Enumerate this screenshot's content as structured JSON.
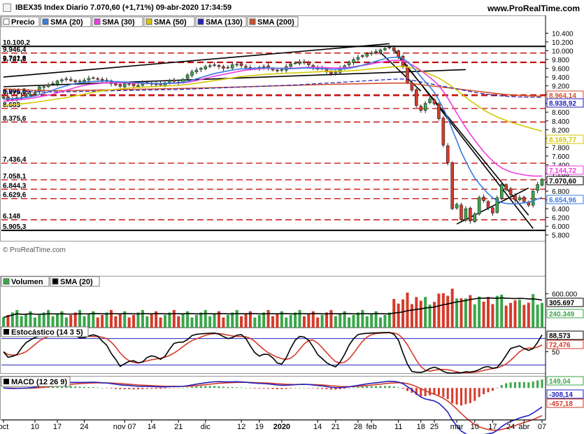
{
  "header": {
    "title": "IBEX35 Index Diario 7.070,60 (+1,71%) 09-abr-2020 17:34:59",
    "url": "www.ProRealTime.com"
  },
  "watermark": "© ProRealTime.com",
  "colors": {
    "sma20": "#3a7be0",
    "sma30": "#ee3de0",
    "sma50": "#d4c800",
    "sma130": "#2222bb",
    "sma200": "#d2512c",
    "candle_up": "#3aa64a",
    "candle_down": "#d63b2a",
    "resistance": "#c40000"
  },
  "chart_data": [
    {
      "type": "candlestick",
      "name": "price",
      "legend": [
        {
          "name": "Precio",
          "color": "#ffffff"
        },
        {
          "name": "SMA (20)",
          "color": "#3a7be0"
        },
        {
          "name": "SMA (30)",
          "color": "#ee3de0"
        },
        {
          "name": "SMA (50)",
          "color": "#d4c800"
        },
        {
          "name": "SMA (130)",
          "color": "#2222bb"
        },
        {
          "name": "SMA (200)",
          "color": "#d2512c"
        }
      ],
      "ylim": [
        5700,
        10550
      ],
      "y_ticks": [
        "10.400",
        "10.200",
        "10.000",
        "9.800",
        "9.600",
        "9.400",
        "9.200",
        "9.000",
        "8.800",
        "8.600",
        "8.400",
        "8.200",
        "8.000",
        "7.800",
        "7.600",
        "7.400",
        "7.200",
        "7.000",
        "6.800",
        "6.600",
        "6.400",
        "6.200",
        "6.000",
        "5.800"
      ],
      "x_labels": [
        "oct",
        "10",
        "17",
        "24",
        "nov 07",
        "14",
        "21",
        "dic",
        "12",
        "19",
        "2020",
        "14",
        "21",
        "28",
        "feb",
        "11",
        "18",
        "25",
        "mar",
        "10",
        "17",
        "24",
        "abr",
        "07"
      ],
      "level_lines": [
        {
          "label": "10.100,2",
          "value": 10100.2,
          "style": "solid"
        },
        {
          "label": "9.946,4",
          "value": 9946.4,
          "style": "dashed"
        },
        {
          "label": "9.741,8",
          "value": 9741.8,
          "style": "dashed"
        },
        {
          "label": "9.727,8",
          "value": 9727.8,
          "style": "dashed"
        },
        {
          "label": "8.996,5",
          "value": 8996.5,
          "style": "dashed"
        },
        {
          "label": "8.975,09",
          "value": 8975.09,
          "style": "dashed"
        },
        {
          "label": "8.683",
          "value": 8683,
          "style": "dashed"
        },
        {
          "label": "8.375,6",
          "value": 8375.6,
          "style": "dashed"
        },
        {
          "label": "7.436,4",
          "value": 7436.4,
          "style": "dashed"
        },
        {
          "label": "7.058,1",
          "value": 7058.1,
          "style": "dashed"
        },
        {
          "label": "6.844,3",
          "value": 6844.3,
          "style": "dashed"
        },
        {
          "label": "6.629,6",
          "value": 6629.6,
          "style": "dashed"
        },
        {
          "label": "6.148",
          "value": 6148,
          "style": "dashed"
        },
        {
          "label": "5.905,3",
          "value": 5905.3,
          "style": "solid"
        }
      ],
      "value_tags": [
        {
          "label": "8.964,14",
          "value": 8964.14,
          "color": "#d2512c"
        },
        {
          "label": "8.938,92",
          "value": 8938.92,
          "color": "#2222bb"
        },
        {
          "label": "8.169,77",
          "value": 8169.77,
          "color": "#d4c800"
        },
        {
          "label": "7.144,72",
          "value": 7144.72,
          "color": "#ee3de0"
        },
        {
          "label": "7.070,60",
          "value": 7070.6,
          "color": "#000000"
        },
        {
          "label": "6.654,96",
          "value": 6654.96,
          "color": "#3a7be0"
        }
      ],
      "close": [
        8950,
        8870,
        8900,
        8930,
        8940,
        8990,
        9010,
        9050,
        9180,
        9180,
        9220,
        9250,
        9310,
        9340,
        9360,
        9320,
        9290,
        9310,
        9330,
        9370,
        9380,
        9350,
        9300,
        9330,
        9250,
        9220,
        9190,
        9250,
        9240,
        9200,
        9210,
        9260,
        9280,
        9240,
        9230,
        9220,
        9270,
        9320,
        9300,
        9280,
        9350,
        9450,
        9520,
        9560,
        9600,
        9640,
        9660,
        9680,
        9640,
        9600,
        9620,
        9680,
        9690,
        9660,
        9620,
        9580,
        9600,
        9620,
        9640,
        9610,
        9560,
        9540,
        9570,
        9640,
        9700,
        9720,
        9750,
        9730,
        9680,
        9620,
        9580,
        9600,
        9520,
        9480,
        9520,
        9600,
        9660,
        9740,
        9800,
        9850,
        9890,
        9930,
        9950,
        9980,
        10020,
        10050,
        10080,
        10000,
        9860,
        9650,
        9270,
        9100,
        8750,
        8640,
        8800,
        8900,
        8790,
        8450,
        7850,
        7450,
        6400,
        6500,
        6150,
        6400,
        6120,
        6280,
        6650,
        6580,
        6420,
        6300,
        6650,
        6950,
        6840,
        6720,
        6600,
        6650,
        6560,
        6480,
        6800,
        6950,
        7070
      ],
      "sma20": [
        8900,
        8900,
        8905,
        8910,
        8920,
        8935,
        8950,
        8970,
        9000,
        9030,
        9060,
        9100,
        9140,
        9170,
        9200,
        9230,
        9250,
        9270,
        9280,
        9290,
        9300,
        9305,
        9310,
        9310,
        9300,
        9295,
        9290,
        9285,
        9280,
        9275,
        9270,
        9265,
        9260,
        9255,
        9250,
        9250,
        9255,
        9260,
        9265,
        9270,
        9280,
        9300,
        9330,
        9360,
        9390,
        9420,
        9450,
        9480,
        9500,
        9520,
        9540,
        9560,
        9575,
        9585,
        9590,
        9595,
        9600,
        9605,
        9610,
        9610,
        9605,
        9600,
        9595,
        9590,
        9590,
        9595,
        9600,
        9605,
        9605,
        9600,
        9600,
        9595,
        9590,
        9580,
        9575,
        9580,
        9590,
        9600,
        9620,
        9640,
        9670,
        9700,
        9730,
        9760,
        9790,
        9820,
        9840,
        9850,
        9850,
        9820,
        9750,
        9650,
        9530,
        9410,
        9290,
        9180,
        9050,
        8880,
        8680,
        8470,
        8200,
        7950,
        7690,
        7480,
        7280,
        7100,
        6970,
        6850,
        6740,
        6650,
        6580,
        6540,
        6520,
        6510,
        6510,
        6520,
        6530,
        6550,
        6580,
        6620,
        6655
      ],
      "sma30": [
        8850,
        8860,
        8870,
        8880,
        8890,
        8900,
        8915,
        8930,
        8950,
        8970,
        8990,
        9010,
        9040,
        9070,
        9100,
        9130,
        9160,
        9190,
        9210,
        9230,
        9240,
        9250,
        9260,
        9265,
        9270,
        9270,
        9268,
        9266,
        9264,
        9262,
        9260,
        9258,
        9256,
        9254,
        9252,
        9252,
        9254,
        9256,
        9258,
        9262,
        9270,
        9280,
        9300,
        9320,
        9345,
        9370,
        9395,
        9420,
        9440,
        9460,
        9480,
        9500,
        9520,
        9540,
        9560,
        9570,
        9580,
        9590,
        9595,
        9600,
        9600,
        9600,
        9600,
        9600,
        9602,
        9605,
        9610,
        9615,
        9620,
        9620,
        9620,
        9618,
        9615,
        9610,
        9605,
        9605,
        9610,
        9620,
        9635,
        9650,
        9665,
        9680,
        9700,
        9720,
        9740,
        9755,
        9770,
        9780,
        9780,
        9765,
        9730,
        9680,
        9620,
        9550,
        9470,
        9390,
        9310,
        9200,
        9070,
        8920,
        8750,
        8580,
        8410,
        8250,
        8100,
        7960,
        7830,
        7700,
        7590,
        7490,
        7400,
        7330,
        7280,
        7240,
        7210,
        7190,
        7170,
        7155,
        7145,
        7143,
        7145
      ],
      "sma50": [
        8750,
        8760,
        8770,
        8780,
        8790,
        8800,
        8810,
        8825,
        8840,
        8855,
        8870,
        8885,
        8900,
        8915,
        8930,
        8950,
        8970,
        8990,
        9010,
        9030,
        9050,
        9070,
        9085,
        9100,
        9110,
        9120,
        9130,
        9140,
        9150,
        9160,
        9165,
        9170,
        9175,
        9180,
        9185,
        9190,
        9195,
        9200,
        9205,
        9210,
        9220,
        9230,
        9245,
        9260,
        9275,
        9290,
        9305,
        9320,
        9335,
        9350,
        9365,
        9380,
        9395,
        9410,
        9420,
        9430,
        9440,
        9450,
        9460,
        9465,
        9470,
        9475,
        9480,
        9485,
        9490,
        9495,
        9500,
        9505,
        9510,
        9515,
        9520,
        9525,
        9530,
        9530,
        9530,
        9532,
        9535,
        9540,
        9548,
        9556,
        9565,
        9575,
        9585,
        9595,
        9605,
        9615,
        9625,
        9635,
        9640,
        9640,
        9630,
        9610,
        9580,
        9545,
        9505,
        9465,
        9425,
        9375,
        9315,
        9250,
        9180,
        9100,
        9020,
        8940,
        8860,
        8790,
        8720,
        8650,
        8590,
        8540,
        8490,
        8450,
        8410,
        8370,
        8340,
        8310,
        8280,
        8250,
        8220,
        8195,
        8170
      ],
      "sma130": [
        9080,
        9078,
        9076,
        9074,
        9072,
        9070,
        9068,
        9066,
        9064,
        9062,
        9060,
        9060,
        9060,
        9062,
        9064,
        9066,
        9068,
        9070,
        9072,
        9075,
        9078,
        9080,
        9082,
        9085,
        9088,
        9090,
        9092,
        9094,
        9096,
        9098,
        9100,
        9102,
        9104,
        9106,
        9108,
        9110,
        9112,
        9114,
        9116,
        9118,
        9120,
        9124,
        9128,
        9132,
        9136,
        9140,
        9144,
        9148,
        9152,
        9156,
        9160,
        9164,
        9168,
        9172,
        9176,
        9180,
        9184,
        9188,
        9192,
        9196,
        9200,
        9204,
        9208,
        9212,
        9216,
        9220,
        9226,
        9232,
        9238,
        9244,
        9250,
        9256,
        9262,
        9268,
        9274,
        9280,
        9286,
        9292,
        9298,
        9304,
        9310,
        9316,
        9322,
        9328,
        9334,
        9340,
        9346,
        9352,
        9356,
        9354,
        9345,
        9330,
        9310,
        9290,
        9270,
        9250,
        9230,
        9210,
        9190,
        9170,
        9150,
        9130,
        9110,
        9090,
        9070,
        9050,
        9035,
        9020,
        9005,
        8990,
        8980,
        8970,
        8962,
        8955,
        8950,
        8946,
        8943,
        8941,
        8940,
        8939,
        8939
      ],
      "sma200": [
        9130,
        9125,
        9120,
        9115,
        9110,
        9105,
        9100,
        9098,
        9096,
        9094,
        9092,
        9090,
        9090,
        9090,
        9090,
        9092,
        9094,
        9096,
        9098,
        9100,
        9102,
        9104,
        9106,
        9108,
        9110,
        9112,
        9114,
        9116,
        9118,
        9120,
        9122,
        9124,
        9126,
        9128,
        9130,
        9132,
        9134,
        9136,
        9138,
        9140,
        9142,
        9144,
        9146,
        9148,
        9150,
        9152,
        9155,
        9158,
        9161,
        9164,
        9167,
        9170,
        9173,
        9176,
        9179,
        9182,
        9185,
        9188,
        9191,
        9194,
        9197,
        9200,
        9203,
        9206,
        9209,
        9212,
        9215,
        9218,
        9221,
        9224,
        9227,
        9230,
        9232,
        9234,
        9236,
        9238,
        9240,
        9242,
        9244,
        9246,
        9248,
        9250,
        9252,
        9254,
        9256,
        9258,
        9260,
        9262,
        9263,
        9262,
        9258,
        9250,
        9240,
        9228,
        9216,
        9204,
        9192,
        9180,
        9168,
        9156,
        9144,
        9132,
        9120,
        9108,
        9096,
        9084,
        9072,
        9060,
        9048,
        9036,
        9024,
        9012,
        9002,
        8994,
        8988,
        8982,
        8977,
        8972,
        8969,
        8966,
        8964
      ]
    },
    {
      "type": "bar",
      "name": "volume",
      "legend": [
        {
          "name": "Volumen",
          "color": "#3aa64a"
        },
        {
          "name": "SMA (20)",
          "color": "#000000"
        }
      ],
      "y_ticks": [
        "600.000"
      ],
      "ylim": [
        0,
        720000
      ],
      "value_tags": [
        {
          "label": "305.697",
          "value": 305697,
          "color": "#000000"
        },
        {
          "label": "240.349",
          "value": 240349,
          "color": "#3aa64a"
        }
      ]
    },
    {
      "type": "line",
      "name": "stochastic",
      "legend": [
        {
          "name": "Estocástico (14 3 5)",
          "color": "#000000"
        }
      ],
      "ylim": [
        0,
        100
      ],
      "y_ticks": [
        "50"
      ],
      "value_tags": [
        {
          "label": "88,573",
          "value": 88.573,
          "color": "#000000"
        },
        {
          "label": "72,476",
          "value": 72.476,
          "color": "#d63b2a"
        }
      ]
    },
    {
      "type": "line",
      "name": "macd",
      "legend": [
        {
          "name": "MACD (12 26 9)",
          "color": "#000000"
        }
      ],
      "ylim": [
        -560,
        220
      ],
      "value_tags": [
        {
          "label": "149,04",
          "value": 149.04,
          "color": "#3aa64a"
        },
        {
          "label": "-308,14",
          "value": -308.14,
          "color": "#2222bb"
        },
        {
          "label": "-457,18",
          "value": -457.18,
          "color": "#d63b2a"
        }
      ]
    }
  ]
}
